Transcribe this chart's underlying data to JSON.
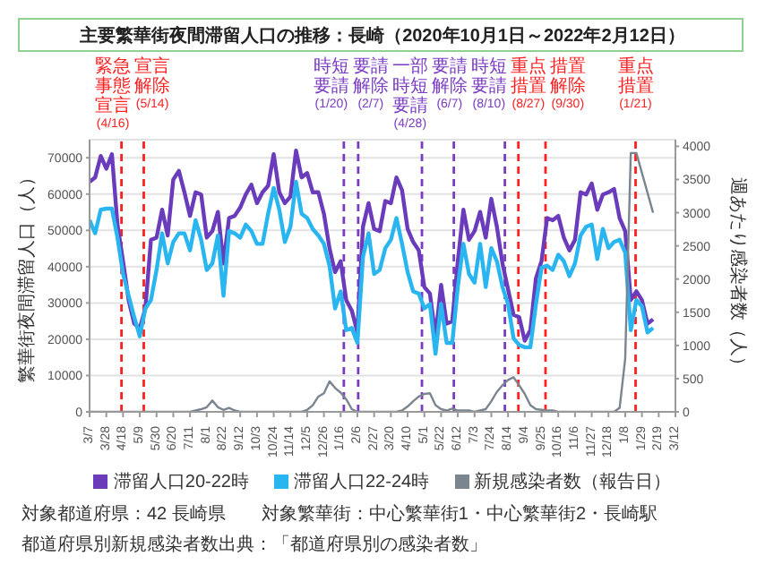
{
  "chart_data": {
    "type": "line",
    "title": "主要繁華街夜間滞留人口の推移：長崎（2020年10月1日～2022年2月12日）",
    "ylabel": "繁華街夜間滞留人口（人）",
    "y2label": "週あたり感染者数（人）",
    "x": [
      "2020-03-07",
      "2020-03-14",
      "2020-03-21",
      "2020-03-28",
      "2020-04-04",
      "2020-04-11",
      "2020-04-18",
      "2020-04-25",
      "2020-05-02",
      "2020-05-09",
      "2020-05-16",
      "2020-05-23",
      "2020-05-30",
      "2020-06-06",
      "2020-06-13",
      "2020-06-20",
      "2020-06-27",
      "2020-07-04",
      "2020-07-11",
      "2020-07-18",
      "2020-07-25",
      "2020-08-01",
      "2020-08-08",
      "2020-08-15",
      "2020-08-22",
      "2020-08-29",
      "2020-09-05",
      "2020-09-12",
      "2020-09-19",
      "2020-09-26",
      "2020-10-03",
      "2020-10-10",
      "2020-10-17",
      "2020-10-24",
      "2020-10-31",
      "2020-11-07",
      "2020-11-14",
      "2020-11-21",
      "2020-11-28",
      "2020-12-05",
      "2020-12-12",
      "2020-12-19",
      "2020-12-26",
      "2021-01-02",
      "2021-01-09",
      "2021-01-16",
      "2021-01-23",
      "2021-01-30",
      "2021-02-06",
      "2021-02-13",
      "2021-02-20",
      "2021-02-27",
      "2021-03-06",
      "2021-03-13",
      "2021-03-20",
      "2021-03-27",
      "2021-04-03",
      "2021-04-10",
      "2021-04-17",
      "2021-04-24",
      "2021-05-01",
      "2021-05-08",
      "2021-05-15",
      "2021-05-22",
      "2021-05-29",
      "2021-06-05",
      "2021-06-12",
      "2021-06-19",
      "2021-06-26",
      "2021-07-03",
      "2021-07-10",
      "2021-07-17",
      "2021-07-24",
      "2021-07-31",
      "2021-08-07",
      "2021-08-14",
      "2021-08-21",
      "2021-08-28",
      "2021-09-04",
      "2021-09-11",
      "2021-09-18",
      "2021-09-25",
      "2021-10-02",
      "2021-10-09",
      "2021-10-16",
      "2021-10-23",
      "2021-10-30",
      "2021-11-06",
      "2021-11-13",
      "2021-11-20",
      "2021-11-27",
      "2021-12-04",
      "2021-12-11",
      "2021-12-18",
      "2021-12-25",
      "2022-01-01",
      "2022-01-08",
      "2022-01-15",
      "2022-01-22",
      "2022-01-29",
      "2022-02-05",
      "2022-02-12"
    ],
    "series": [
      {
        "name": "滞留人口20-22時",
        "color": "#6a3cbc",
        "values": [
          63400,
          64600,
          70500,
          67000,
          71000,
          51600,
          41500,
          30800,
          24300,
          23100,
          28500,
          47400,
          48000,
          55700,
          48600,
          64000,
          66400,
          60500,
          54000,
          60500,
          59900,
          48000,
          49800,
          55100,
          40900,
          53400,
          54000,
          56300,
          59900,
          62600,
          57500,
          60500,
          62300,
          71000,
          60500,
          57500,
          59300,
          72000,
          64600,
          65800,
          60500,
          60500,
          54600,
          45100,
          38500,
          41500,
          30800,
          27900,
          21900,
          51000,
          57500,
          50400,
          49800,
          58100,
          57500,
          64600,
          61100,
          50400,
          46800,
          44500,
          34400,
          32600,
          20800,
          35000,
          24300,
          24900,
          41500,
          55700,
          47400,
          49800,
          55100,
          48000,
          58700,
          51000,
          40900,
          33800,
          26700,
          26100,
          19600,
          22500,
          36800,
          41500,
          53400,
          52800,
          54000,
          48000,
          44500,
          47400,
          60500,
          59900,
          62900,
          55700,
          59900,
          60500,
          61400,
          53400,
          49800,
          30800,
          33200,
          30800,
          24300,
          25500
        ]
      },
      {
        "name": "滞留人口22-24時",
        "color": "#29b6f0",
        "values": [
          52800,
          49200,
          55700,
          56000,
          56000,
          48000,
          38000,
          32000,
          26100,
          20800,
          28500,
          30800,
          39100,
          49200,
          40900,
          46800,
          49200,
          49200,
          44500,
          52800,
          47400,
          39100,
          40900,
          48600,
          32000,
          49800,
          49200,
          48000,
          51600,
          49800,
          46300,
          46300,
          54600,
          61700,
          55700,
          46800,
          51000,
          63400,
          54600,
          53400,
          50400,
          48600,
          46300,
          40300,
          28500,
          33200,
          22500,
          23100,
          19000,
          42700,
          49200,
          38000,
          39100,
          45100,
          47400,
          53400,
          46300,
          38500,
          33200,
          32600,
          28500,
          29700,
          16000,
          29700,
          19000,
          19000,
          34400,
          46300,
          38000,
          35600,
          46300,
          34400,
          45100,
          41500,
          34400,
          29700,
          20200,
          18400,
          17800,
          17800,
          29700,
          39700,
          40300,
          39100,
          43300,
          41500,
          37400,
          40900,
          48600,
          51000,
          51600,
          42100,
          50400,
          45100,
          46800,
          47400,
          43900,
          22500,
          30800,
          29100,
          21900,
          23100
        ]
      },
      {
        "name": "新規感染者数（報告日）",
        "color": "#7a8590",
        "axis": "y2",
        "values": [
          0,
          0,
          0,
          0,
          0,
          0,
          0,
          0,
          0,
          0,
          0,
          0,
          0,
          0,
          0,
          0,
          0,
          0,
          0,
          20,
          40,
          70,
          170,
          70,
          30,
          60,
          20,
          0,
          0,
          0,
          0,
          0,
          0,
          0,
          0,
          0,
          0,
          0,
          0,
          30,
          100,
          230,
          280,
          460,
          360,
          290,
          190,
          40,
          0,
          0,
          0,
          0,
          0,
          0,
          0,
          0,
          20,
          80,
          160,
          230,
          270,
          280,
          100,
          40,
          20,
          50,
          20,
          20,
          20,
          0,
          20,
          40,
          160,
          300,
          400,
          480,
          520,
          400,
          270,
          100,
          40,
          30,
          20,
          20,
          0,
          0,
          0,
          0,
          0,
          0,
          0,
          0,
          0,
          0,
          0,
          60,
          800,
          3900,
          3900,
          3600,
          3300,
          3000
        ]
      }
    ],
    "xlim": [
      "2020-03-07",
      "2022-03-12"
    ],
    "xticks": [
      {
        "value": "2020-03-07",
        "label": "3/7"
      },
      {
        "value": "2020-03-28",
        "label": "3/28"
      },
      {
        "value": "2020-04-18",
        "label": "4/18"
      },
      {
        "value": "2020-05-09",
        "label": "5/9"
      },
      {
        "value": "2020-05-30",
        "label": "5/30"
      },
      {
        "value": "2020-06-20",
        "label": "6/20"
      },
      {
        "value": "2020-07-11",
        "label": "7/11"
      },
      {
        "value": "2020-08-01",
        "label": "8/1"
      },
      {
        "value": "2020-08-22",
        "label": "8/22"
      },
      {
        "value": "2020-09-12",
        "label": "9/12"
      },
      {
        "value": "2020-10-03",
        "label": "10/3"
      },
      {
        "value": "2020-10-24",
        "label": "10/24"
      },
      {
        "value": "2020-11-14",
        "label": "11/14"
      },
      {
        "value": "2020-12-05",
        "label": "12/5"
      },
      {
        "value": "2020-12-26",
        "label": "12/26"
      },
      {
        "value": "2021-01-16",
        "label": "1/16"
      },
      {
        "value": "2021-02-06",
        "label": "2/6"
      },
      {
        "value": "2021-02-27",
        "label": "2/27"
      },
      {
        "value": "2021-03-20",
        "label": "3/20"
      },
      {
        "value": "2021-04-10",
        "label": "4/10"
      },
      {
        "value": "2021-05-01",
        "label": "5/1"
      },
      {
        "value": "2021-05-22",
        "label": "5/22"
      },
      {
        "value": "2021-06-12",
        "label": "6/12"
      },
      {
        "value": "2021-07-03",
        "label": "7/3"
      },
      {
        "value": "2021-07-24",
        "label": "7/24"
      },
      {
        "value": "2021-08-14",
        "label": "8/14"
      },
      {
        "value": "2021-09-04",
        "label": "9/4"
      },
      {
        "value": "2021-09-25",
        "label": "9/25"
      },
      {
        "value": "2021-10-16",
        "label": "10/16"
      },
      {
        "value": "2021-11-06",
        "label": "11/6"
      },
      {
        "value": "2021-11-27",
        "label": "11/27"
      },
      {
        "value": "2021-12-18",
        "label": "12/18"
      },
      {
        "value": "2022-01-08",
        "label": "1/8"
      },
      {
        "value": "2022-01-29",
        "label": "1/29"
      },
      {
        "value": "2022-02-19",
        "label": "2/19"
      },
      {
        "value": "2022-03-12",
        "label": "3/12"
      }
    ],
    "ylim": [
      0,
      75000
    ],
    "yticks": [
      0,
      10000,
      20000,
      30000,
      40000,
      50000,
      60000,
      70000
    ],
    "y2lim": [
      0,
      4100
    ],
    "y2ticks": [
      0,
      500,
      1000,
      1500,
      2000,
      2500,
      3000,
      3500,
      4000
    ],
    "ref_lines": [
      {
        "axis": "x",
        "value": "2020-04-16",
        "label": "緊急事態宣言(4/16)",
        "color": "#ff2020",
        "line_style": "dashed"
      },
      {
        "axis": "x",
        "value": "2020-05-14",
        "label": "宣言解除(5/14)",
        "color": "#ff2020",
        "line_style": "dashed"
      },
      {
        "axis": "x",
        "value": "2021-01-20",
        "label": "時短要請(1/20)",
        "color": "#7a3cc2",
        "line_style": "dashed"
      },
      {
        "axis": "x",
        "value": "2021-02-07",
        "label": "要請解除(2/7)",
        "color": "#7a3cc2",
        "line_style": "dashed"
      },
      {
        "axis": "x",
        "value": "2021-04-28",
        "label": "一部時短要請(4/28)",
        "color": "#7a3cc2",
        "line_style": "dashed"
      },
      {
        "axis": "x",
        "value": "2021-06-07",
        "label": "要請解除(6/7)",
        "color": "#7a3cc2",
        "line_style": "dashed"
      },
      {
        "axis": "x",
        "value": "2021-08-10",
        "label": "時短要請(8/10)",
        "color": "#7a3cc2",
        "line_style": "dashed"
      },
      {
        "axis": "x",
        "value": "2021-08-27",
        "label": "重点措置(8/27)",
        "color": "#ff2020",
        "line_style": "dashed"
      },
      {
        "axis": "x",
        "value": "2021-09-30",
        "label": "措置解除(9/30)",
        "color": "#ff2020",
        "line_style": "dashed"
      },
      {
        "axis": "x",
        "value": "2022-01-21",
        "label": "重点措置(1/21)",
        "color": "#ff2020",
        "line_style": "dashed"
      }
    ],
    "annotations": [
      "対象都道府県：42 長崎県",
      "対象繁華街：中心繁華街1・中心繁華街2・長崎駅",
      "都道府県別新規感染者数出典：「都道府県別の感染者数」"
    ],
    "grid": "y",
    "legend": "bottom"
  }
}
